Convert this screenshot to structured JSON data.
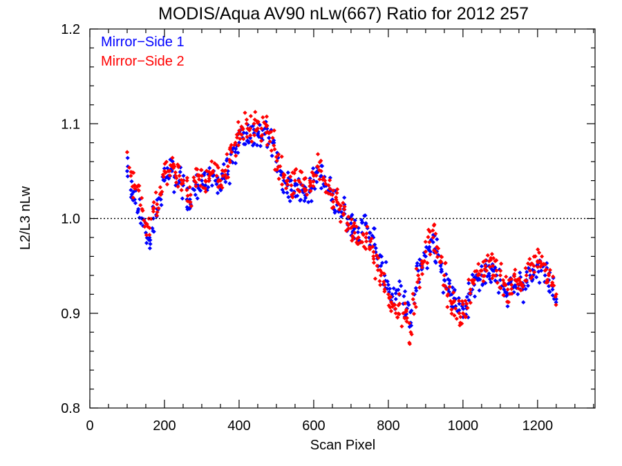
{
  "chart_data": {
    "type": "scatter",
    "title": "MODIS/Aqua AV90 nLw(667) Ratio for 2012 257",
    "xlabel": "Scan Pixel",
    "ylabel": "L2/L3 nLw",
    "xlim": [
      0,
      1354
    ],
    "ylim": [
      0.8,
      1.2
    ],
    "x_ticks": [
      0,
      200,
      400,
      600,
      800,
      1000,
      1200
    ],
    "y_ticks": [
      0.8,
      0.9,
      1.0,
      1.1,
      1.2
    ],
    "x_tick_labels": [
      "0",
      "200",
      "400",
      "600",
      "800",
      "1000",
      "1200"
    ],
    "y_tick_labels": [
      "0.8",
      "0.9",
      "1.0",
      "1.1",
      "1.2"
    ],
    "reference_line": {
      "y": 1.0,
      "style": "dotted"
    },
    "legend_position": "top-left",
    "x_range": [
      100,
      1250
    ],
    "series": [
      {
        "name": "Mirror−Side 1",
        "color": "#0000ff",
        "points": [
          [
            100,
            1.05
          ],
          [
            110,
            1.03
          ],
          [
            120,
            1.02
          ],
          [
            130,
            1.01
          ],
          [
            140,
            1.0
          ],
          [
            150,
            0.985
          ],
          [
            160,
            0.98
          ],
          [
            170,
            1.0
          ],
          [
            180,
            1.01
          ],
          [
            190,
            1.02
          ],
          [
            200,
            1.04
          ],
          [
            210,
            1.045
          ],
          [
            220,
            1.05
          ],
          [
            230,
            1.035
          ],
          [
            240,
            1.04
          ],
          [
            250,
            1.035
          ],
          [
            260,
            1.02
          ],
          [
            270,
            1.015
          ],
          [
            280,
            1.03
          ],
          [
            290,
            1.035
          ],
          [
            300,
            1.04
          ],
          [
            310,
            1.035
          ],
          [
            320,
            1.04
          ],
          [
            330,
            1.045
          ],
          [
            340,
            1.04
          ],
          [
            350,
            1.035
          ],
          [
            360,
            1.045
          ],
          [
            370,
            1.05
          ],
          [
            380,
            1.06
          ],
          [
            390,
            1.07
          ],
          [
            400,
            1.08
          ],
          [
            410,
            1.085
          ],
          [
            420,
            1.09
          ],
          [
            430,
            1.085
          ],
          [
            440,
            1.09
          ],
          [
            450,
            1.088
          ],
          [
            460,
            1.085
          ],
          [
            470,
            1.09
          ],
          [
            480,
            1.085
          ],
          [
            490,
            1.08
          ],
          [
            500,
            1.06
          ],
          [
            510,
            1.05
          ],
          [
            520,
            1.04
          ],
          [
            530,
            1.035
          ],
          [
            540,
            1.03
          ],
          [
            550,
            1.035
          ],
          [
            560,
            1.03
          ],
          [
            570,
            1.03
          ],
          [
            580,
            1.025
          ],
          [
            590,
            1.03
          ],
          [
            600,
            1.04
          ],
          [
            610,
            1.05
          ],
          [
            620,
            1.045
          ],
          [
            630,
            1.035
          ],
          [
            640,
            1.03
          ],
          [
            650,
            1.02
          ],
          [
            660,
            1.02
          ],
          [
            670,
            1.01
          ],
          [
            680,
            1.01
          ],
          [
            690,
            1.0
          ],
          [
            700,
            0.995
          ],
          [
            710,
            0.99
          ],
          [
            720,
            0.99
          ],
          [
            730,
            0.985
          ],
          [
            740,
            0.995
          ],
          [
            750,
            0.985
          ],
          [
            760,
            0.98
          ],
          [
            770,
            0.96
          ],
          [
            780,
            0.95
          ],
          [
            790,
            0.94
          ],
          [
            800,
            0.93
          ],
          [
            810,
            0.92
          ],
          [
            820,
            0.915
          ],
          [
            830,
            0.92
          ],
          [
            840,
            0.91
          ],
          [
            850,
            0.905
          ],
          [
            860,
            0.89
          ],
          [
            870,
            0.92
          ],
          [
            880,
            0.945
          ],
          [
            890,
            0.95
          ],
          [
            900,
            0.96
          ],
          [
            910,
            0.97
          ],
          [
            920,
            0.975
          ],
          [
            930,
            0.965
          ],
          [
            940,
            0.95
          ],
          [
            950,
            0.935
          ],
          [
            960,
            0.925
          ],
          [
            970,
            0.92
          ],
          [
            980,
            0.915
          ],
          [
            990,
            0.91
          ],
          [
            1000,
            0.905
          ],
          [
            1010,
            0.905
          ],
          [
            1020,
            0.92
          ],
          [
            1030,
            0.93
          ],
          [
            1040,
            0.935
          ],
          [
            1050,
            0.94
          ],
          [
            1060,
            0.945
          ],
          [
            1070,
            0.95
          ],
          [
            1080,
            0.945
          ],
          [
            1090,
            0.94
          ],
          [
            1100,
            0.935
          ],
          [
            1110,
            0.925
          ],
          [
            1120,
            0.92
          ],
          [
            1130,
            0.93
          ],
          [
            1140,
            0.935
          ],
          [
            1150,
            0.93
          ],
          [
            1160,
            0.925
          ],
          [
            1170,
            0.935
          ],
          [
            1180,
            0.94
          ],
          [
            1190,
            0.945
          ],
          [
            1200,
            0.95
          ],
          [
            1210,
            0.945
          ],
          [
            1220,
            0.94
          ],
          [
            1230,
            0.935
          ],
          [
            1240,
            0.925
          ],
          [
            1250,
            0.915
          ]
        ]
      },
      {
        "name": "Mirror−Side 2",
        "color": "#ff0000",
        "points": [
          [
            100,
            1.07
          ],
          [
            110,
            1.045
          ],
          [
            120,
            1.035
          ],
          [
            130,
            1.03
          ],
          [
            140,
            1.01
          ],
          [
            150,
            0.995
          ],
          [
            160,
            0.99
          ],
          [
            170,
            1.01
          ],
          [
            180,
            1.015
          ],
          [
            190,
            1.025
          ],
          [
            200,
            1.05
          ],
          [
            210,
            1.05
          ],
          [
            220,
            1.055
          ],
          [
            230,
            1.045
          ],
          [
            240,
            1.045
          ],
          [
            250,
            1.04
          ],
          [
            260,
            1.03
          ],
          [
            270,
            1.025
          ],
          [
            280,
            1.04
          ],
          [
            290,
            1.045
          ],
          [
            300,
            1.045
          ],
          [
            310,
            1.04
          ],
          [
            320,
            1.045
          ],
          [
            330,
            1.05
          ],
          [
            340,
            1.045
          ],
          [
            350,
            1.04
          ],
          [
            360,
            1.05
          ],
          [
            370,
            1.055
          ],
          [
            380,
            1.07
          ],
          [
            390,
            1.08
          ],
          [
            400,
            1.09
          ],
          [
            410,
            1.095
          ],
          [
            420,
            1.1
          ],
          [
            430,
            1.095
          ],
          [
            440,
            1.1
          ],
          [
            450,
            1.095
          ],
          [
            460,
            1.095
          ],
          [
            470,
            1.1
          ],
          [
            480,
            1.09
          ],
          [
            490,
            1.085
          ],
          [
            500,
            1.065
          ],
          [
            510,
            1.055
          ],
          [
            520,
            1.045
          ],
          [
            530,
            1.04
          ],
          [
            540,
            1.035
          ],
          [
            550,
            1.04
          ],
          [
            560,
            1.04
          ],
          [
            570,
            1.035
          ],
          [
            580,
            1.03
          ],
          [
            590,
            1.04
          ],
          [
            600,
            1.045
          ],
          [
            610,
            1.055
          ],
          [
            620,
            1.05
          ],
          [
            630,
            1.04
          ],
          [
            640,
            1.035
          ],
          [
            650,
            1.025
          ],
          [
            660,
            1.02
          ],
          [
            670,
            1.01
          ],
          [
            680,
            1.005
          ],
          [
            690,
            0.995
          ],
          [
            700,
            0.99
          ],
          [
            710,
            0.985
          ],
          [
            720,
            0.98
          ],
          [
            730,
            0.975
          ],
          [
            740,
            0.98
          ],
          [
            750,
            0.97
          ],
          [
            760,
            0.96
          ],
          [
            770,
            0.95
          ],
          [
            780,
            0.94
          ],
          [
            790,
            0.93
          ],
          [
            800,
            0.92
          ],
          [
            810,
            0.91
          ],
          [
            820,
            0.9
          ],
          [
            830,
            0.91
          ],
          [
            840,
            0.9
          ],
          [
            850,
            0.895
          ],
          [
            860,
            0.88
          ],
          [
            870,
            0.91
          ],
          [
            880,
            0.94
          ],
          [
            890,
            0.955
          ],
          [
            900,
            0.965
          ],
          [
            910,
            0.975
          ],
          [
            920,
            0.98
          ],
          [
            930,
            0.97
          ],
          [
            940,
            0.955
          ],
          [
            950,
            0.94
          ],
          [
            960,
            0.92
          ],
          [
            970,
            0.91
          ],
          [
            980,
            0.905
          ],
          [
            990,
            0.9
          ],
          [
            1000,
            0.9
          ],
          [
            1010,
            0.91
          ],
          [
            1020,
            0.925
          ],
          [
            1030,
            0.935
          ],
          [
            1040,
            0.94
          ],
          [
            1050,
            0.945
          ],
          [
            1060,
            0.95
          ],
          [
            1070,
            0.955
          ],
          [
            1080,
            0.95
          ],
          [
            1090,
            0.945
          ],
          [
            1100,
            0.94
          ],
          [
            1110,
            0.93
          ],
          [
            1120,
            0.925
          ],
          [
            1130,
            0.93
          ],
          [
            1140,
            0.935
          ],
          [
            1150,
            0.935
          ],
          [
            1160,
            0.93
          ],
          [
            1170,
            0.94
          ],
          [
            1180,
            0.945
          ],
          [
            1190,
            0.95
          ],
          [
            1200,
            0.955
          ],
          [
            1210,
            0.95
          ],
          [
            1220,
            0.945
          ],
          [
            1230,
            0.94
          ],
          [
            1240,
            0.93
          ],
          [
            1250,
            0.92
          ]
        ]
      }
    ]
  }
}
